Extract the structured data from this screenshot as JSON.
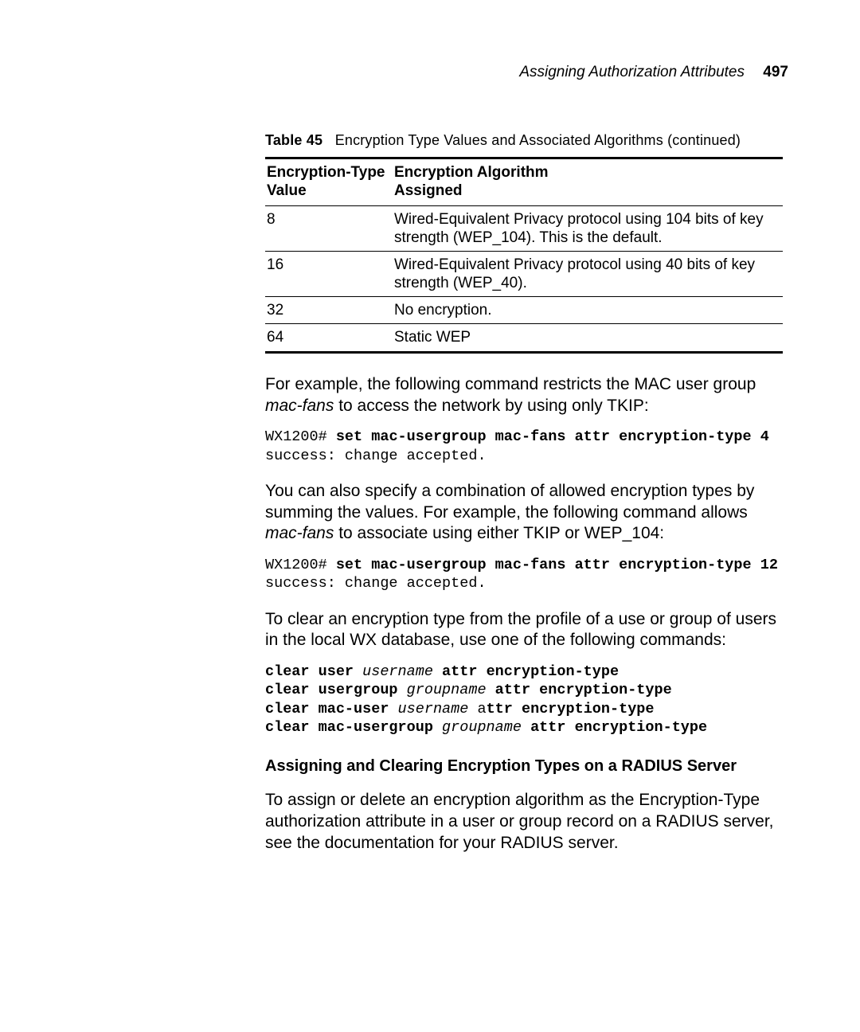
{
  "header": {
    "title": "Assigning Authorization Attributes",
    "page_number": "497"
  },
  "table": {
    "caption_label": "Table 45",
    "caption_text": "Encryption Type Values and Associated Algorithms (continued)",
    "col1_header_l1": "Encryption-Type",
    "col1_header_l2": "Value",
    "col2_header_l1": "Encryption Algorithm",
    "col2_header_l2": "Assigned",
    "rows": [
      {
        "v": "8",
        "d": "Wired-Equivalent Privacy protocol using 104 bits of key strength (WEP_104). This is the default."
      },
      {
        "v": "16",
        "d": "Wired-Equivalent Privacy protocol using 40 bits of key strength (WEP_40)."
      },
      {
        "v": "32",
        "d": "No encryption."
      },
      {
        "v": "64",
        "d": "Static WEP"
      }
    ]
  },
  "para1_a": "For example, the following command restricts the MAC user group ",
  "para1_ital": "mac-fans",
  "para1_b": " to access the network by using only TKIP:",
  "cmd1_prompt": "WX1200# ",
  "cmd1_bold": "set mac-usergroup mac-fans attr encryption-type 4",
  "cmd1_result": "success: change accepted.",
  "para2_a": "You can also specify a combination of allowed encryption types by summing the values. For example, the following command allows ",
  "para2_ital": "mac-fans",
  "para2_b": " to associate using either TKIP or WEP_104:",
  "cmd2_prompt": "WX1200# ",
  "cmd2_bold": "set mac-usergroup mac-fans attr encryption-type 12",
  "cmd2_result": "success: change accepted.",
  "para3": "To clear an encryption type from the profile of a use or group of users in the local WX database, use one of the following commands:",
  "clr1_b1": "clear user ",
  "clr1_i": "username",
  "clr1_b2": " attr encryption-type",
  "clr2_b1": "clear usergroup ",
  "clr2_i": "groupname",
  "clr2_b2": " attr encryption-type",
  "clr3_b1": "clear mac-user ",
  "clr3_i": "username",
  "clr3_plain": " a",
  "clr3_b2": "ttr encryption-type",
  "clr4_b1": "clear mac-usergroup ",
  "clr4_i": "groupname",
  "clr4_b2": " attr encryption-type",
  "subheading": "Assigning and Clearing Encryption Types on a RADIUS Server",
  "para4": "To assign or delete an encryption algorithm as the Encryption-Type authorization attribute in a user or group record on a RADIUS server, see the documentation for your RADIUS server."
}
